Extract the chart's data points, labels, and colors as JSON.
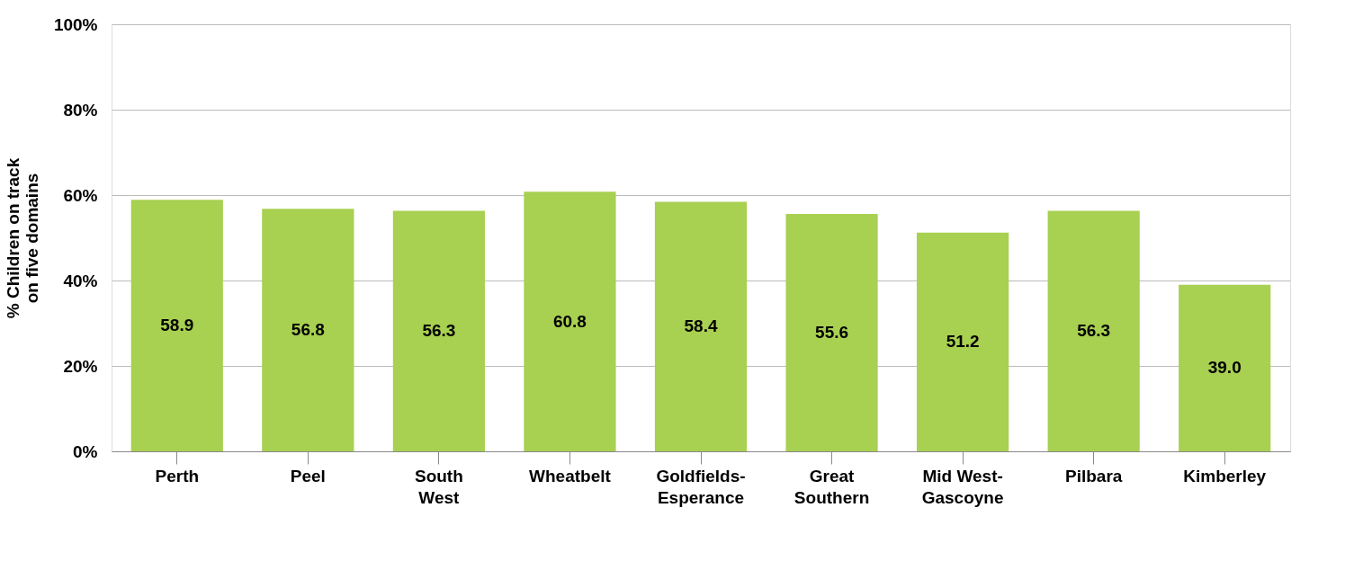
{
  "chart_data": {
    "type": "bar",
    "ylabel": "% Children on track on five domains",
    "categories": [
      "Perth",
      "Peel",
      "South West",
      "Wheatbelt",
      "Goldfields-Esperance",
      "Great Southern",
      "Mid West-Gascoyne",
      "Pilbara",
      "Kimberley"
    ],
    "values": [
      58.9,
      56.8,
      56.3,
      60.8,
      58.4,
      55.6,
      51.2,
      56.3,
      39.0
    ],
    "value_labels": [
      "58.9",
      "56.8",
      "56.3",
      "60.8",
      "58.4",
      "55.6",
      "51.2",
      "56.3",
      "39.0"
    ],
    "color": "#a8d051",
    "ylim": [
      0,
      100
    ],
    "yticks": [
      {
        "value": 0,
        "label": "0%"
      },
      {
        "value": 20,
        "label": "20%"
      },
      {
        "value": 40,
        "label": "40%"
      },
      {
        "value": 60,
        "label": "60%"
      },
      {
        "value": 80,
        "label": "80%"
      },
      {
        "value": 100,
        "label": "100%"
      }
    ],
    "grid": "y"
  }
}
